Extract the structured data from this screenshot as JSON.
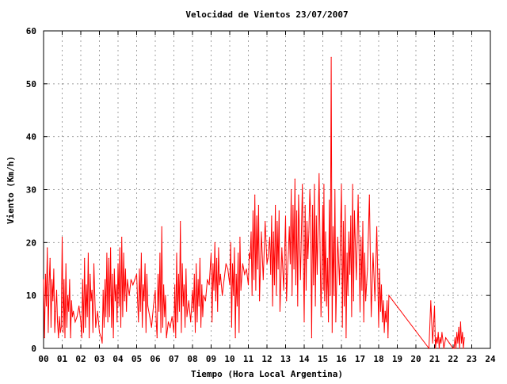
{
  "chart_data": {
    "type": "line",
    "title": "Velocidad de Vientos 23/07/2007",
    "xlabel": "Tiempo (Hora Local Argentina)",
    "ylabel": "Viento (Km/h)",
    "xlim": [
      0,
      24
    ],
    "ylim": [
      0,
      60
    ],
    "grid": true,
    "legend": "none",
    "x_tick_labels": [
      "00",
      "01",
      "02",
      "03",
      "04",
      "05",
      "06",
      "07",
      "08",
      "09",
      "10",
      "11",
      "12",
      "13",
      "14",
      "15",
      "16",
      "17",
      "18",
      "19",
      "20",
      "21",
      "22",
      "23",
      "24"
    ],
    "y_tick_labels": [
      "0",
      "10",
      "20",
      "30",
      "40",
      "50",
      "60"
    ],
    "series": [
      {
        "color": "#ff0000",
        "x": [
          0.0,
          0.05,
          0.1,
          0.15,
          0.2,
          0.25,
          0.3,
          0.35,
          0.4,
          0.45,
          0.5,
          0.55,
          0.6,
          0.65,
          0.7,
          0.75,
          0.8,
          0.85,
          0.9,
          0.95,
          1.0,
          1.05,
          1.1,
          1.15,
          1.2,
          1.25,
          1.3,
          1.35,
          1.4,
          1.45,
          1.5,
          1.55,
          1.6,
          1.7,
          1.8,
          1.9,
          2.0,
          2.05,
          2.1,
          2.15,
          2.2,
          2.25,
          2.3,
          2.35,
          2.4,
          2.45,
          2.5,
          2.55,
          2.6,
          2.65,
          2.7,
          2.8,
          2.9,
          3.0,
          3.1,
          3.15,
          3.2,
          3.25,
          3.3,
          3.35,
          3.4,
          3.45,
          3.5,
          3.55,
          3.6,
          3.65,
          3.7,
          3.75,
          3.8,
          3.85,
          3.9,
          3.95,
          4.0,
          4.05,
          4.1,
          4.15,
          4.2,
          4.25,
          4.3,
          4.35,
          4.4,
          4.45,
          4.5,
          4.6,
          4.7,
          4.8,
          4.9,
          5.0,
          5.05,
          5.1,
          5.15,
          5.2,
          5.25,
          5.3,
          5.35,
          5.4,
          5.45,
          5.5,
          5.55,
          5.6,
          5.7,
          5.8,
          5.9,
          6.0,
          6.05,
          6.1,
          6.15,
          6.2,
          6.25,
          6.3,
          6.35,
          6.4,
          6.45,
          6.5,
          6.55,
          6.6,
          6.7,
          6.8,
          6.9,
          7.0,
          7.05,
          7.1,
          7.15,
          7.2,
          7.25,
          7.3,
          7.35,
          7.4,
          7.45,
          7.5,
          7.55,
          7.6,
          7.65,
          7.7,
          7.8,
          7.9,
          8.0,
          8.05,
          8.1,
          8.15,
          8.2,
          8.25,
          8.3,
          8.35,
          8.4,
          8.45,
          8.5,
          8.55,
          8.6,
          8.7,
          8.8,
          8.9,
          9.0,
          9.05,
          9.1,
          9.15,
          9.2,
          9.25,
          9.3,
          9.35,
          9.4,
          9.45,
          9.5,
          9.6,
          9.7,
          9.8,
          9.9,
          10.0,
          10.05,
          10.1,
          10.15,
          10.2,
          10.25,
          10.3,
          10.35,
          10.4,
          10.45,
          10.5,
          10.55,
          10.6,
          10.7,
          10.8,
          10.9,
          11.0,
          11.05,
          11.1,
          11.15,
          11.2,
          11.25,
          11.3,
          11.35,
          11.4,
          11.45,
          11.5,
          11.55,
          11.6,
          11.7,
          11.8,
          11.9,
          12.0,
          12.05,
          12.1,
          12.15,
          12.2,
          12.25,
          12.3,
          12.35,
          12.4,
          12.45,
          12.5,
          12.55,
          12.6,
          12.65,
          12.7,
          12.8,
          12.9,
          13.0,
          13.05,
          13.1,
          13.15,
          13.2,
          13.25,
          13.3,
          13.35,
          13.4,
          13.45,
          13.5,
          13.55,
          13.6,
          13.65,
          13.7,
          13.8,
          13.9,
          14.0,
          14.05,
          14.1,
          14.15,
          14.2,
          14.25,
          14.3,
          14.35,
          14.4,
          14.45,
          14.5,
          14.55,
          14.6,
          14.65,
          14.7,
          14.8,
          14.9,
          15.0,
          15.03,
          15.06,
          15.1,
          15.15,
          15.2,
          15.25,
          15.3,
          15.35,
          15.4,
          15.45,
          15.5,
          15.55,
          15.6,
          15.65,
          15.7,
          15.8,
          15.9,
          16.0,
          16.05,
          16.1,
          16.15,
          16.2,
          16.25,
          16.3,
          16.35,
          16.4,
          16.45,
          16.5,
          16.55,
          16.6,
          16.65,
          16.7,
          16.8,
          16.9,
          17.0,
          17.05,
          17.1,
          17.15,
          17.2,
          17.25,
          17.3,
          17.35,
          17.4,
          17.5,
          17.6,
          17.7,
          17.8,
          17.9,
          18.0,
          18.05,
          18.1,
          18.15,
          18.2,
          18.25,
          18.3,
          18.35,
          18.4,
          18.45,
          18.5,
          18.55,
          20.7,
          20.8,
          20.9,
          21.0,
          21.05,
          21.1,
          21.15,
          21.2,
          21.25,
          21.3,
          21.35,
          21.4,
          21.5,
          21.6,
          21.8,
          22.0,
          22.05,
          22.1,
          22.15,
          22.2,
          22.25,
          22.3,
          22.35,
          22.4,
          22.45,
          22.5,
          22.55,
          22.6
        ],
        "y": [
          13,
          2,
          14,
          8,
          19,
          3,
          12,
          17,
          4,
          13,
          9,
          15,
          3,
          7,
          11,
          5,
          2,
          6,
          3,
          4,
          21,
          3,
          13,
          2,
          16,
          4,
          10,
          7,
          13,
          2,
          9,
          6,
          7,
          5,
          6,
          8,
          5,
          2,
          13,
          3,
          17,
          4,
          12,
          6,
          18,
          2,
          14,
          9,
          11,
          3,
          16,
          4,
          7,
          3,
          2,
          1,
          11,
          4,
          13,
          6,
          18,
          5,
          17,
          6,
          19,
          4,
          14,
          2,
          15,
          9,
          12,
          5,
          16,
          8,
          19,
          4,
          21,
          6,
          18,
          9,
          15,
          7,
          13,
          10,
          13,
          12,
          13,
          14,
          9,
          5,
          15,
          7,
          18,
          4,
          12,
          9,
          16,
          3,
          14,
          8,
          6,
          4,
          8,
          11,
          5,
          2,
          14,
          7,
          18,
          3,
          23,
          4,
          12,
          6,
          10,
          2,
          5,
          4,
          6,
          3,
          12,
          2,
          18,
          5,
          14,
          7,
          24,
          3,
          16,
          8,
          12,
          4,
          15,
          6,
          9,
          5,
          11,
          7,
          14,
          3,
          16,
          5,
          13,
          8,
          17,
          4,
          12,
          6,
          10,
          9,
          13,
          12,
          18,
          5,
          16,
          11,
          20,
          9,
          17,
          7,
          19,
          12,
          14,
          10,
          13,
          16,
          15,
          12,
          20,
          4,
          16,
          10,
          19,
          2,
          14,
          8,
          18,
          3,
          21,
          11,
          16,
          14,
          15,
          12,
          18,
          17,
          22,
          10,
          26,
          13,
          29,
          11,
          25,
          15,
          27,
          9,
          22,
          13,
          24,
          16,
          17,
          19,
          21,
          14,
          25,
          8,
          22,
          12,
          27,
          10,
          24,
          15,
          26,
          7,
          19,
          11,
          25,
          9,
          14,
          18,
          23,
          16,
          30,
          10,
          27,
          15,
          32,
          12,
          26,
          8,
          29,
          13,
          31,
          5,
          27,
          11,
          24,
          17,
          22,
          30,
          25,
          2,
          27,
          12,
          31,
          8,
          25,
          14,
          33,
          6,
          27,
          11,
          31,
          9,
          22,
          8,
          17,
          5,
          28,
          10,
          55,
          3,
          23,
          10,
          30,
          5,
          21,
          12,
          31,
          4,
          24,
          8,
          27,
          2,
          18,
          10,
          22,
          14,
          25,
          6,
          31,
          9,
          26,
          13,
          29,
          7,
          21,
          11,
          24,
          5,
          18,
          9,
          12,
          15,
          29,
          6,
          18,
          9,
          23,
          4,
          15,
          7,
          12,
          5,
          9,
          3,
          7,
          5,
          9,
          2,
          10,
          0,
          9,
          1,
          8,
          0,
          2,
          1,
          3,
          0,
          2,
          1,
          3,
          0,
          2,
          1,
          0,
          0,
          2,
          0,
          3,
          1,
          4,
          0,
          5,
          1,
          3,
          0,
          2
        ]
      }
    ]
  }
}
